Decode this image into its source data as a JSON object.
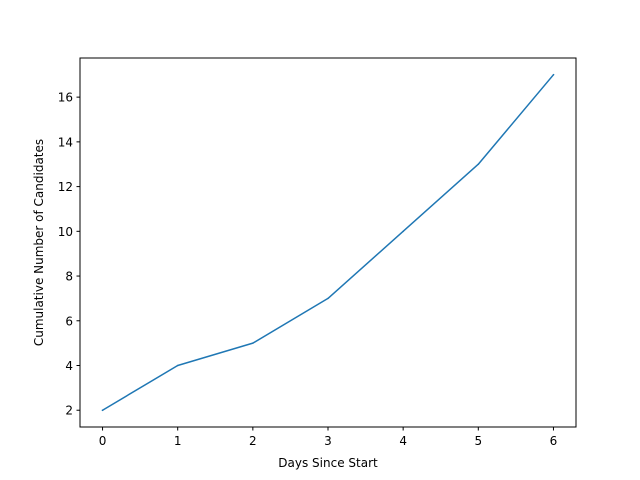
{
  "chart_data": {
    "type": "line",
    "title": "",
    "xlabel": "Days Since Start",
    "ylabel": "Cumulative Number of Candidates",
    "x": [
      0,
      1,
      2,
      3,
      4,
      5,
      6
    ],
    "series": [
      {
        "values": [
          2,
          4,
          5,
          7,
          10,
          13,
          17
        ],
        "color": "#1f77b4"
      }
    ],
    "xlim": [
      -0.3,
      6.3
    ],
    "ylim": [
      1.25,
      17.75
    ],
    "xticks": [
      0,
      1,
      2,
      3,
      4,
      5,
      6
    ],
    "yticks": [
      2,
      4,
      6,
      8,
      10,
      12,
      14,
      16
    ],
    "grid": false,
    "legend": false
  }
}
